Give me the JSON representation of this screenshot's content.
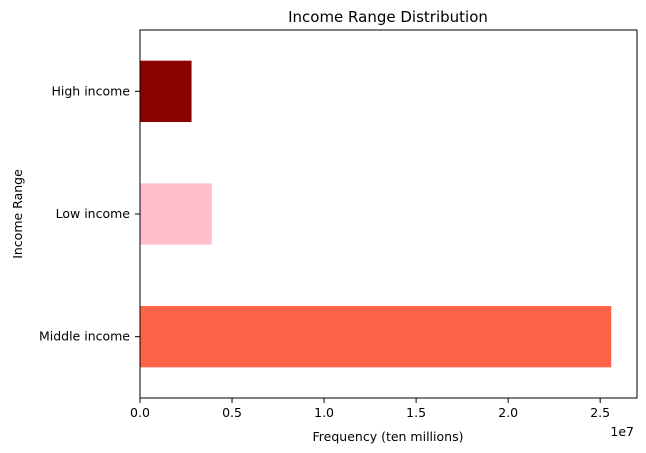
{
  "chart_data": {
    "type": "bar",
    "orientation": "horizontal",
    "title": "Income Range Distribution",
    "xlabel": "Frequency (ten millions)",
    "ylabel": "Income Range",
    "x_offset_text": "1e7",
    "categories": [
      "Middle income",
      "Low income",
      "High income"
    ],
    "values": [
      25600000,
      3900000,
      2800000
    ],
    "colors": [
      "#ff6347",
      "#ffc0cb",
      "#8b0000"
    ],
    "xlim": [
      0,
      27000000
    ],
    "xticks": [
      0,
      5000000,
      10000000,
      15000000,
      20000000,
      25000000
    ],
    "xtick_labels": [
      "0.0",
      "0.5",
      "1.0",
      "1.5",
      "2.0",
      "2.5"
    ],
    "grid": false,
    "legend": "none"
  }
}
